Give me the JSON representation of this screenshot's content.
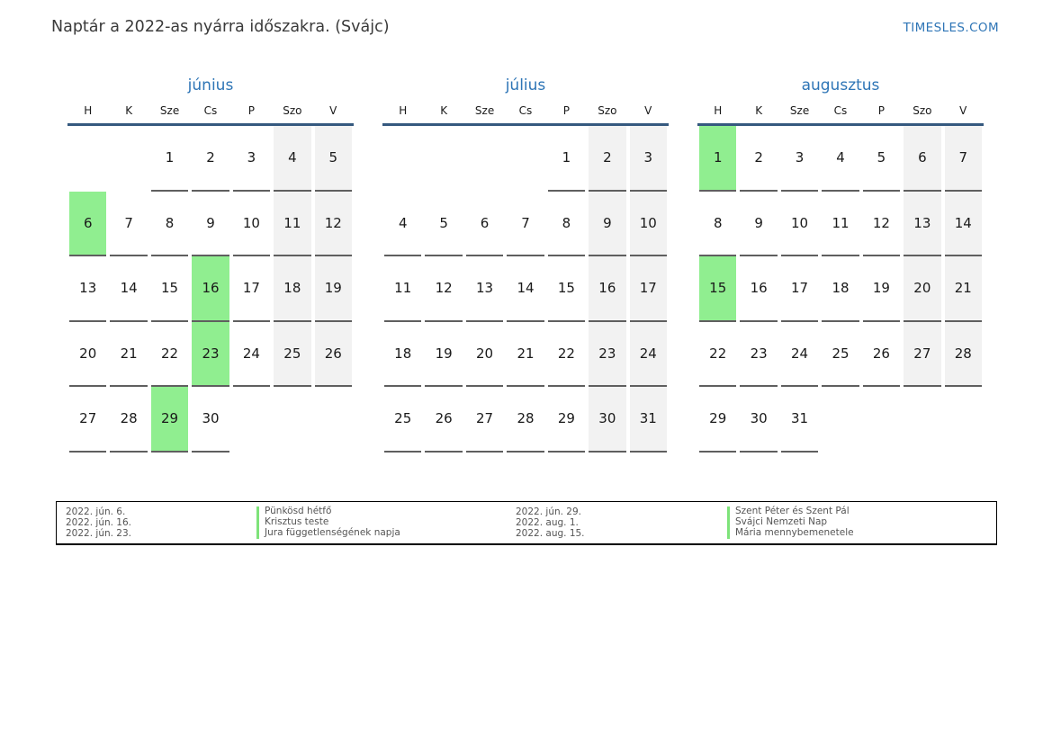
{
  "page": {
    "title": "Naptár a 2022-as nyárra időszakra. (Svájc)",
    "brand": "TIMESLES.COM"
  },
  "colors": {
    "accent_blue": "#2e75b6",
    "header_rule_blue": "#35597f",
    "holiday_green": "#90ee90",
    "weekend_gray": "#f2f2f2",
    "day_underline_gray": "#5f5f5f"
  },
  "weekday_headers": [
    "H",
    "K",
    "Sze",
    "Cs",
    "P",
    "Szo",
    "V"
  ],
  "months": [
    {
      "name": "június",
      "weeks": [
        [
          null,
          null,
          1,
          2,
          3,
          4,
          5
        ],
        [
          6,
          7,
          8,
          9,
          10,
          11,
          12
        ],
        [
          13,
          14,
          15,
          16,
          17,
          18,
          19
        ],
        [
          20,
          21,
          22,
          23,
          24,
          25,
          26
        ],
        [
          27,
          28,
          29,
          30,
          null,
          null,
          null
        ]
      ],
      "holidays": [
        6,
        16,
        23,
        29
      ]
    },
    {
      "name": "július",
      "weeks": [
        [
          null,
          null,
          null,
          null,
          1,
          2,
          3
        ],
        [
          4,
          5,
          6,
          7,
          8,
          9,
          10
        ],
        [
          11,
          12,
          13,
          14,
          15,
          16,
          17
        ],
        [
          18,
          19,
          20,
          21,
          22,
          23,
          24
        ],
        [
          25,
          26,
          27,
          28,
          29,
          30,
          31
        ]
      ],
      "holidays": []
    },
    {
      "name": "augusztus",
      "weeks": [
        [
          1,
          2,
          3,
          4,
          5,
          6,
          7
        ],
        [
          8,
          9,
          10,
          11,
          12,
          13,
          14
        ],
        [
          15,
          16,
          17,
          18,
          19,
          20,
          21
        ],
        [
          22,
          23,
          24,
          25,
          26,
          27,
          28
        ],
        [
          29,
          30,
          31,
          null,
          null,
          null,
          null
        ]
      ],
      "holidays": [
        1,
        15
      ]
    }
  ],
  "legend": {
    "left": [
      {
        "date": "2022. jún. 6.",
        "name": "Pünkösd hétfő"
      },
      {
        "date": "2022. jún. 16.",
        "name": "Krisztus teste"
      },
      {
        "date": "2022. jún. 23.",
        "name": "Jura függetlenségének napja"
      }
    ],
    "right": [
      {
        "date": "2022. jún. 29.",
        "name": "Szent Péter és Szent Pál"
      },
      {
        "date": "2022. aug. 1.",
        "name": "Svájci Nemzeti Nap"
      },
      {
        "date": "2022. aug. 15.",
        "name": "Mária mennybemenetele"
      }
    ]
  }
}
